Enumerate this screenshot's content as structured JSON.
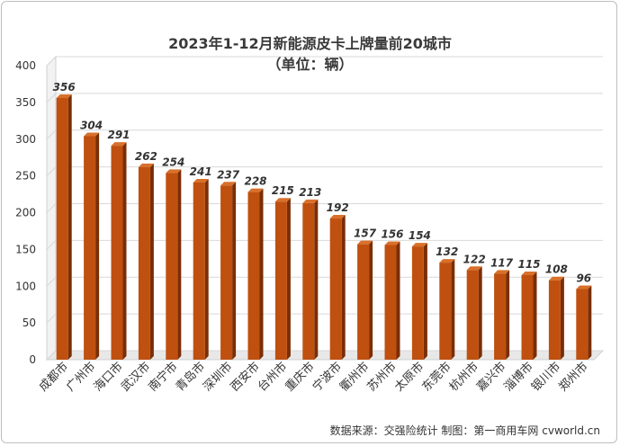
{
  "chart_data": {
    "type": "bar",
    "title": "2023年1-12月新能源皮卡上牌量前20城市",
    "subtitle": "（单位：辆）",
    "categories": [
      "成都市",
      "广州市",
      "海口市",
      "武汉市",
      "南宁市",
      "青岛市",
      "深圳市",
      "西安市",
      "台州市",
      "重庆市",
      "宁波市",
      "衢州市",
      "苏州市",
      "太原市",
      "东莞市",
      "杭州市",
      "嘉兴市",
      "淄博市",
      "银川市",
      "郑州市"
    ],
    "values": [
      356,
      304,
      291,
      262,
      254,
      241,
      237,
      228,
      215,
      213,
      192,
      157,
      156,
      154,
      132,
      122,
      117,
      115,
      108,
      96
    ],
    "ylim": [
      0,
      400
    ],
    "yticks": [
      0,
      50,
      100,
      150,
      200,
      250,
      300,
      350,
      400
    ],
    "grid": true,
    "colors": {
      "bar": "#c0500f",
      "bar_side": "#7a2e06",
      "bar_top": "#d9702a"
    }
  },
  "footer": "数据来源：交强险统计    制图：第一商用车网 cvworld.cn"
}
